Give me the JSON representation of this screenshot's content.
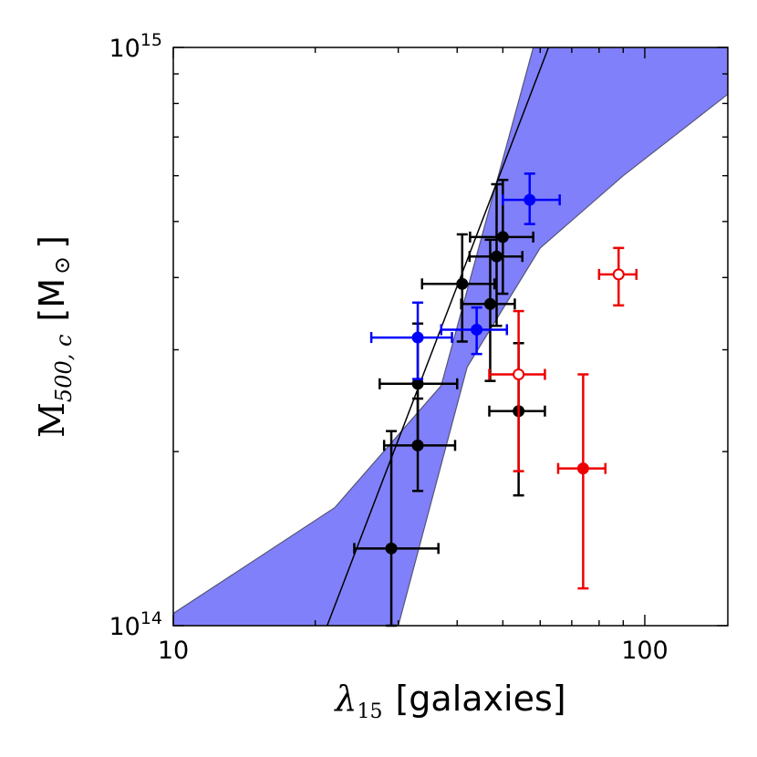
{
  "chart_data": {
    "type": "scatter",
    "x_scale": "log",
    "y_scale": "log",
    "xlim": [
      10,
      150
    ],
    "ylim": [
      100000000000000.0,
      1000000000000000.0
    ],
    "xlabel": {
      "symbol": "λ",
      "subscript": "15",
      "units": "[galaxies]"
    },
    "ylabel": {
      "symbol": "M",
      "subscript": "500, c",
      "units": "[M",
      "units_symbol": "⊙",
      "units_close": "]"
    },
    "x_ticks": [
      {
        "value": 10,
        "label": "10"
      },
      {
        "value": 100,
        "label": "100"
      }
    ],
    "y_ticks": [
      {
        "value": 100000000000000.0,
        "base": "10",
        "exp": "14"
      },
      {
        "value": 1000000000000000.0,
        "base": "10",
        "exp": "15"
      }
    ],
    "fit": {
      "line": [
        [
          21.2,
          100000000000000.0
        ],
        [
          62.5,
          1000000000000000.0
        ]
      ],
      "band_upper": [
        [
          10,
          105000000000000.0
        ],
        [
          22,
          160000000000000.0
        ],
        [
          37,
          260000000000000.0
        ],
        [
          58,
          1000000000000000.0
        ],
        [
          150,
          1000000000000000.0
        ]
      ],
      "band_lower": [
        [
          150,
          830000000000000.0
        ],
        [
          90,
          600000000000000.0
        ],
        [
          60,
          450000000000000.0
        ],
        [
          42,
          280000000000000.0
        ],
        [
          30,
          100000000000000.0
        ],
        [
          10,
          100000000000000.0
        ]
      ],
      "band_color": "#8080fa",
      "line_color": "#000000"
    },
    "series": [
      {
        "name": "black",
        "color": "#000000",
        "filled": true,
        "points": [
          {
            "x": 29,
            "y": 136000000000000.0,
            "xerr": [
              24.2,
              36.5
            ],
            "yerr": [
              100000000000000.0,
              217000000000000.0
            ]
          },
          {
            "x": 33,
            "y": 205000000000000.0,
            "xerr": [
              28,
              39.6
            ],
            "yerr": [
              171000000000000.0,
              247000000000000.0
            ]
          },
          {
            "x": 33,
            "y": 262000000000000.0,
            "xerr": [
              27.4,
              40
            ],
            "yerr": [
              204000000000000.0,
              333000000000000.0
            ]
          },
          {
            "x": 41,
            "y": 390000000000000.0,
            "xerr": [
              33.7,
              48
            ],
            "yerr": [
              310000000000000.0,
              475000000000000.0
            ]
          },
          {
            "x": 47,
            "y": 360000000000000.0,
            "xerr": [
              40.8,
              53
            ],
            "yerr": [
              265000000000000.0,
              465000000000000.0
            ]
          },
          {
            "x": 48.5,
            "y": 435000000000000.0,
            "xerr": [
              42.5,
              55
            ],
            "yerr": [
              330000000000000.0,
              580000000000000.0
            ]
          },
          {
            "x": 50,
            "y": 470000000000000.0,
            "xerr": [
              42.6,
              58
            ],
            "yerr": [
              375000000000000.0,
              590000000000000.0
            ]
          },
          {
            "x": 54,
            "y": 235000000000000.0,
            "xerr": [
              46.8,
              61.4
            ],
            "yerr": [
              168000000000000.0,
              308000000000000.0
            ]
          }
        ]
      },
      {
        "name": "blue",
        "color": "#0000ff",
        "filled": true,
        "points": [
          {
            "x": 33,
            "y": 315000000000000.0,
            "xerr": [
              26.3,
              39
            ],
            "yerr": [
              267000000000000.0,
              362000000000000.0
            ]
          },
          {
            "x": 44,
            "y": 325000000000000.0,
            "xerr": [
              37,
              51
            ],
            "yerr": [
              295000000000000.0,
              355000000000000.0
            ]
          },
          {
            "x": 57,
            "y": 545000000000000.0,
            "xerr": [
              50,
              66
            ],
            "yerr": [
              495000000000000.0,
              605000000000000.0
            ]
          }
        ]
      },
      {
        "name": "red",
        "color": "#ee0000",
        "filled": false,
        "points": [
          {
            "x": 54,
            "y": 272000000000000.0,
            "xerr": [
              46.8,
              61.4
            ],
            "yerr": [
              185000000000000.0,
              350000000000000.0
            ]
          },
          {
            "x": 88,
            "y": 405000000000000.0,
            "xerr": [
              80,
              96
            ],
            "yerr": [
              358000000000000.0,
              450000000000000.0
            ]
          }
        ]
      },
      {
        "name": "red-filled",
        "color": "#ee0000",
        "filled": true,
        "points": [
          {
            "x": 74,
            "y": 187000000000000.0,
            "xerr": [
              65.5,
              82.5
            ],
            "yerr": [
              116000000000000.0,
              272000000000000.0
            ]
          }
        ]
      }
    ]
  }
}
